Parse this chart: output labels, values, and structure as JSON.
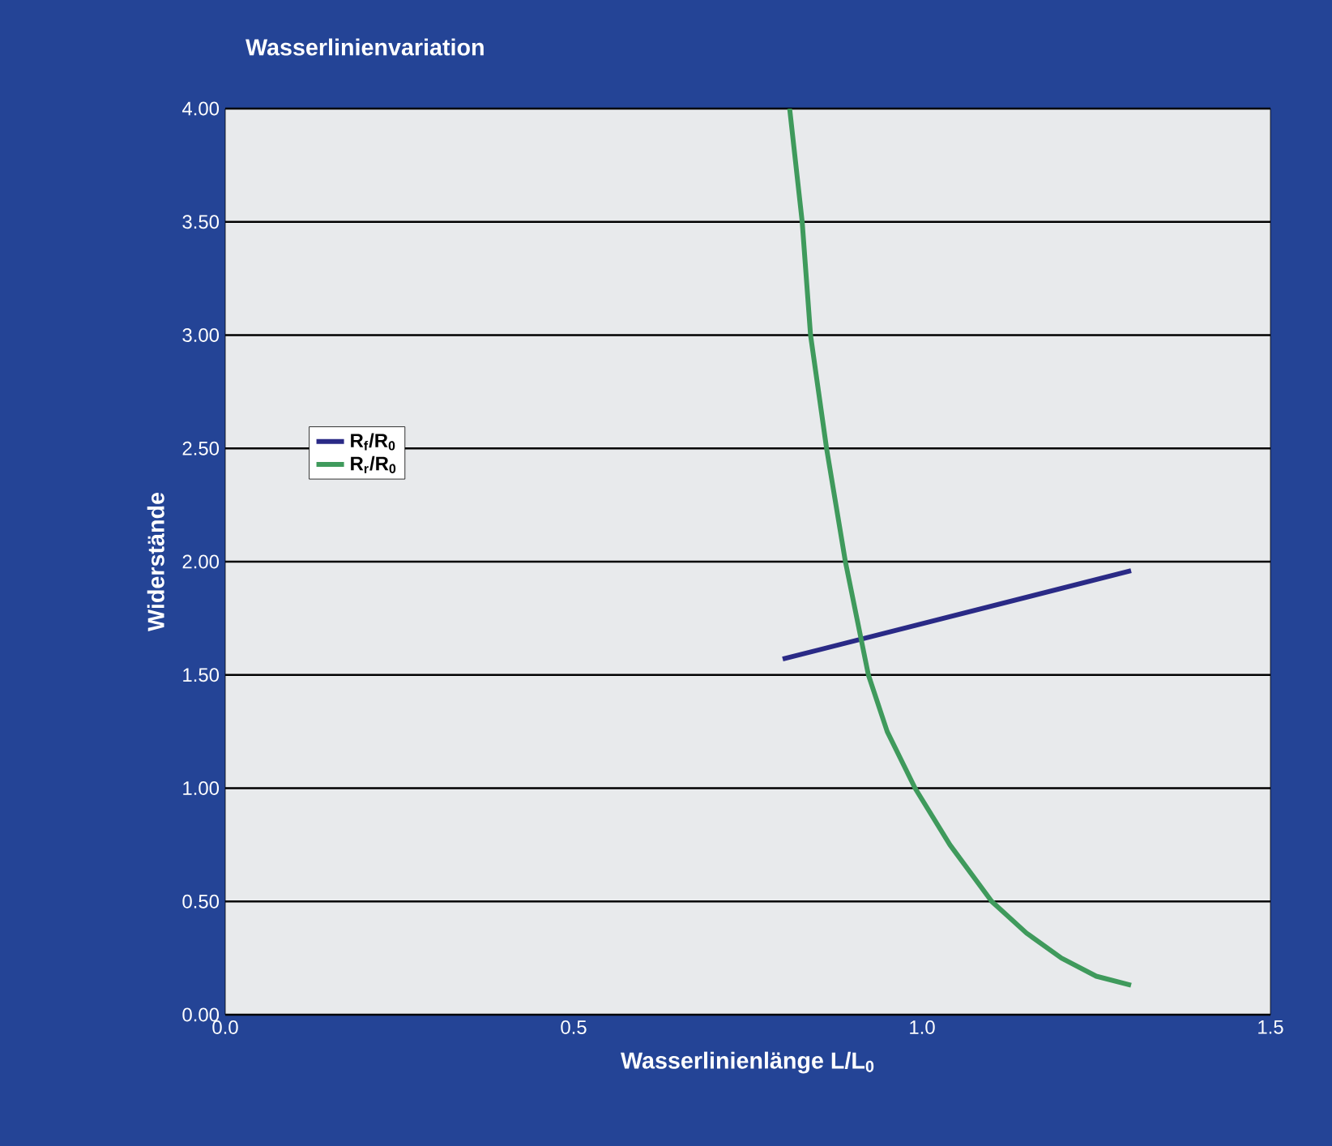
{
  "chart_data": {
    "type": "line",
    "title": "Wasserlinienvariation",
    "xlabel": "Wasserlinienlänge L/L$_{0}$",
    "ylabel": "Widerstände",
    "series": [
      {
        "name": "R$_{f}$/R$_{0}$",
        "color": "#2a2a86",
        "x": [
          0.8,
          1.3
        ],
        "values": [
          1.57,
          1.96
        ]
      },
      {
        "name": "R$_{r}$/R$_{0}$",
        "color": "#3f9a5c",
        "x": [
          0.81,
          0.828,
          0.84,
          0.863,
          0.89,
          0.923,
          0.95,
          0.99,
          1.04,
          1.1,
          1.15,
          1.2,
          1.25,
          1.3
        ],
        "values": [
          4.0,
          3.5,
          3.0,
          2.5,
          2.0,
          1.5,
          1.25,
          1.0,
          0.75,
          0.5,
          0.36,
          0.25,
          0.17,
          0.13
        ]
      }
    ],
    "xlim": [
      0,
      1.5
    ],
    "ylim": [
      0,
      4
    ],
    "xticks": [
      {
        "value": 0,
        "label": "0.0"
      },
      {
        "value": 0.5,
        "label": "0.5"
      },
      {
        "value": 1,
        "label": "1.0"
      },
      {
        "value": 1.5,
        "label": "1.5"
      }
    ],
    "yticks": [
      {
        "value": 0,
        "label": "0.00"
      },
      {
        "value": 0.5,
        "label": "0.50"
      },
      {
        "value": 1,
        "label": "1.00"
      },
      {
        "value": 1.5,
        "label": "1.50"
      },
      {
        "value": 2,
        "label": "2.00"
      },
      {
        "value": 2.5,
        "label": "2.50"
      },
      {
        "value": 3,
        "label": "3.00"
      },
      {
        "value": 3.5,
        "label": "3.50"
      },
      {
        "value": 4,
        "label": "4.00"
      }
    ],
    "grid": "y",
    "legend": "left",
    "marker": "none",
    "line_style": "solid"
  }
}
